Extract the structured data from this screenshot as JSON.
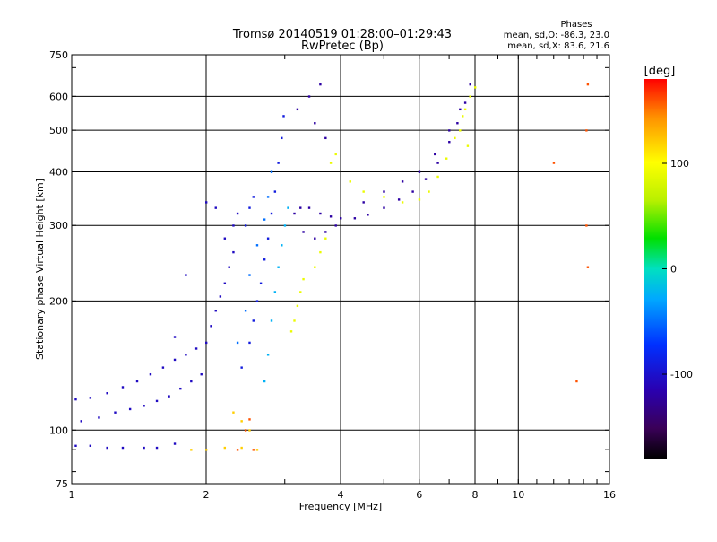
{
  "chart_data": {
    "type": "scatter",
    "title": "Tromsø 20140519 01:28:00–01:29:43",
    "subtitle": "RwPretec (Bp)",
    "xlabel": "Frequency [MHz]",
    "ylabel": "Stationary phase Virtual Height [km]",
    "x_scale": "log",
    "y_scale": "log",
    "xlim": [
      1,
      16
    ],
    "ylim": [
      75,
      750
    ],
    "x_ticks": [
      1,
      2,
      4,
      6,
      8,
      10,
      16
    ],
    "x_tick_labels": [
      "1",
      "2",
      "4",
      "6",
      "8",
      "10",
      "16"
    ],
    "y_ticks": [
      75,
      100,
      200,
      300,
      400,
      500,
      600,
      750
    ],
    "y_tick_labels": [
      "75",
      "100",
      "200",
      "300",
      "400",
      "500",
      "600",
      "750"
    ],
    "grid": true,
    "stats": {
      "heading": "Phases",
      "line_o": "mean, sd,O: -86.3, 23.0",
      "line_x": "mean, sd,X:  83.6, 21.6"
    },
    "colorbar": {
      "label": "[deg]",
      "range": [
        -180,
        180
      ],
      "tick_values": [
        100,
        0,
        -100
      ],
      "tick_labels": [
        "100",
        "0",
        "-100"
      ]
    },
    "series": [
      {
        "phase": -105,
        "points": [
          [
            1.02,
            92
          ],
          [
            1.1,
            92
          ],
          [
            1.2,
            91
          ],
          [
            1.3,
            91
          ],
          [
            1.45,
            91
          ],
          [
            1.55,
            91
          ],
          [
            1.7,
            93
          ],
          [
            1.05,
            105
          ],
          [
            1.15,
            107
          ],
          [
            1.25,
            110
          ],
          [
            1.35,
            112
          ],
          [
            1.45,
            114
          ],
          [
            1.55,
            117
          ],
          [
            1.65,
            120
          ],
          [
            1.75,
            125
          ],
          [
            1.85,
            130
          ],
          [
            1.95,
            135
          ],
          [
            1.02,
            118
          ],
          [
            1.1,
            119
          ],
          [
            1.2,
            122
          ],
          [
            1.3,
            126
          ],
          [
            1.4,
            130
          ],
          [
            1.5,
            135
          ],
          [
            1.6,
            140
          ],
          [
            1.7,
            146
          ],
          [
            1.8,
            150
          ],
          [
            1.9,
            155
          ],
          [
            2.0,
            160
          ],
          [
            2.05,
            175
          ],
          [
            2.1,
            190
          ],
          [
            2.15,
            205
          ],
          [
            2.2,
            220
          ],
          [
            2.25,
            240
          ],
          [
            2.3,
            260
          ],
          [
            2.2,
            280
          ],
          [
            2.3,
            300
          ],
          [
            2.35,
            320
          ],
          [
            1.7,
            165
          ],
          [
            1.8,
            230
          ],
          [
            2.0,
            340
          ],
          [
            2.1,
            330
          ]
        ]
      },
      {
        "phase": -90,
        "points": [
          [
            2.4,
            140
          ],
          [
            2.5,
            160
          ],
          [
            2.55,
            180
          ],
          [
            2.6,
            200
          ],
          [
            2.65,
            220
          ],
          [
            2.7,
            250
          ],
          [
            2.75,
            280
          ],
          [
            2.8,
            320
          ],
          [
            2.85,
            360
          ],
          [
            2.9,
            420
          ],
          [
            2.95,
            480
          ],
          [
            2.98,
            540
          ],
          [
            2.45,
            300
          ],
          [
            2.5,
            330
          ],
          [
            2.55,
            350
          ]
        ]
      },
      {
        "phase": -50,
        "points": [
          [
            2.35,
            160
          ],
          [
            2.45,
            190
          ],
          [
            2.5,
            230
          ],
          [
            2.6,
            270
          ],
          [
            2.7,
            310
          ],
          [
            2.75,
            350
          ],
          [
            2.8,
            400
          ]
        ]
      },
      {
        "phase": -25,
        "points": [
          [
            2.7,
            130
          ],
          [
            2.75,
            150
          ],
          [
            2.8,
            180
          ],
          [
            2.85,
            210
          ],
          [
            2.9,
            240
          ],
          [
            2.95,
            270
          ],
          [
            3.0,
            300
          ],
          [
            3.05,
            330
          ]
        ]
      },
      {
        "phase": -120,
        "points": [
          [
            3.15,
            320
          ],
          [
            3.25,
            330
          ],
          [
            3.4,
            330
          ],
          [
            3.6,
            320
          ],
          [
            3.8,
            315
          ],
          [
            4.0,
            312
          ],
          [
            4.3,
            312
          ],
          [
            4.6,
            318
          ],
          [
            5.0,
            330
          ],
          [
            5.4,
            345
          ],
          [
            5.8,
            360
          ],
          [
            6.2,
            385
          ],
          [
            6.6,
            420
          ],
          [
            7.0,
            470
          ],
          [
            7.3,
            520
          ],
          [
            7.6,
            580
          ],
          [
            7.8,
            640
          ],
          [
            3.3,
            290
          ],
          [
            3.5,
            280
          ],
          [
            3.7,
            290
          ],
          [
            3.9,
            300
          ],
          [
            4.5,
            340
          ],
          [
            5.0,
            360
          ],
          [
            5.5,
            380
          ],
          [
            6.0,
            400
          ],
          [
            6.5,
            440
          ],
          [
            7.0,
            500
          ],
          [
            7.4,
            560
          ],
          [
            3.4,
            600
          ],
          [
            3.6,
            640
          ],
          [
            3.2,
            560
          ],
          [
            3.5,
            520
          ],
          [
            3.7,
            480
          ]
        ]
      },
      {
        "phase": 90,
        "points": [
          [
            3.1,
            170
          ],
          [
            3.15,
            180
          ],
          [
            3.2,
            195
          ],
          [
            3.25,
            210
          ],
          [
            3.3,
            225
          ],
          [
            3.5,
            240
          ],
          [
            3.6,
            260
          ],
          [
            3.7,
            280
          ],
          [
            3.8,
            420
          ],
          [
            3.9,
            440
          ],
          [
            4.2,
            380
          ],
          [
            4.5,
            360
          ],
          [
            5.0,
            350
          ],
          [
            5.5,
            340
          ],
          [
            6.0,
            345
          ],
          [
            6.3,
            360
          ],
          [
            6.6,
            390
          ],
          [
            6.9,
            430
          ],
          [
            7.2,
            480
          ],
          [
            7.5,
            540
          ],
          [
            7.8,
            600
          ],
          [
            8.0,
            630
          ],
          [
            7.6,
            560
          ],
          [
            7.4,
            500
          ],
          [
            7.7,
            460
          ]
        ]
      },
      {
        "phase": 120,
        "points": [
          [
            1.85,
            90
          ],
          [
            2.0,
            90
          ],
          [
            2.2,
            91
          ],
          [
            2.4,
            91
          ],
          [
            2.6,
            90
          ],
          [
            2.5,
            100
          ],
          [
            2.4,
            105
          ],
          [
            2.3,
            110
          ]
        ]
      },
      {
        "phase": 160,
        "points": [
          [
            2.35,
            90
          ],
          [
            2.55,
            90
          ],
          [
            2.45,
            100
          ],
          [
            2.5,
            106
          ],
          [
            14.3,
            640
          ],
          [
            14.2,
            500
          ],
          [
            14.2,
            300
          ],
          [
            14.3,
            240
          ],
          [
            13.5,
            130
          ],
          [
            12.0,
            420
          ]
        ]
      }
    ]
  }
}
